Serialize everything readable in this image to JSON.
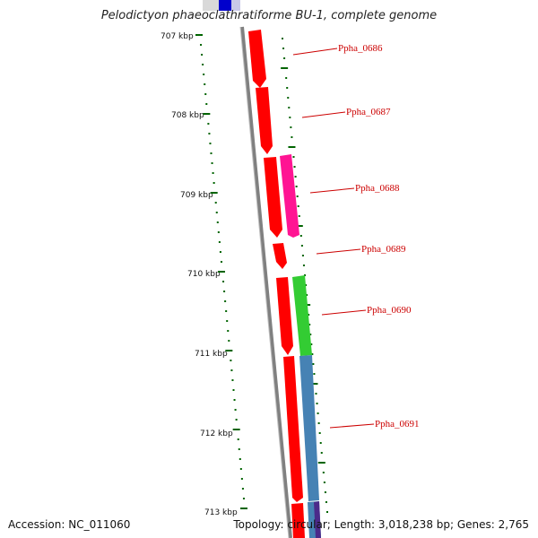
{
  "title": "Pelodictyon phaeoclathratiforme BU-1, complete genome",
  "footer": {
    "accession": "Accession: NC_011060",
    "topology": "Topology: circular; Length: 3,018,238 bp; Genes: 2,765"
  },
  "ticks": [
    "707 kbp",
    "708 kbp",
    "709 kbp",
    "710 kbp",
    "711 kbp",
    "712 kbp",
    "713 kbp"
  ],
  "genes": [
    {
      "label": "Ppha_0686",
      "color": "#ff0000"
    },
    {
      "label": "Ppha_0687",
      "color": "#ff0000"
    },
    {
      "label": "Ppha_0688",
      "color": "#ff1493"
    },
    {
      "label": "Ppha_0689",
      "color": "#ff0000"
    },
    {
      "label": "Ppha_0690",
      "color": "#33cc33"
    },
    {
      "label": "Ppha_0691",
      "color": "#4682b4"
    }
  ],
  "colors": {
    "backbone": "#808080",
    "tick": "#006400",
    "label": "#cc0000",
    "gene_red": "#ff0000",
    "gene_pink": "#ff1493",
    "gene_green": "#33cc33",
    "gene_blue": "#4682b4",
    "gene_navy": "#0000cc",
    "gene_purple": "#4b2a8a"
  }
}
